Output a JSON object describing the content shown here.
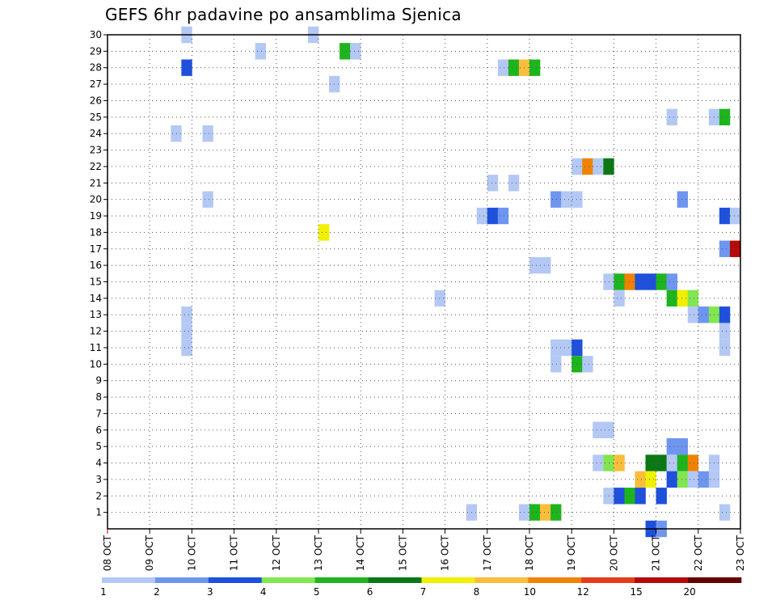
{
  "chart_data": {
    "type": "heatmap",
    "title": "GEFS 6hr padavine po ansamblima Sjenica",
    "xlabel": "",
    "ylabel": "",
    "x_tick_labels": [
      "08 OCT",
      "09 OCT",
      "10 OCT",
      "11 OCT",
      "12 OCT",
      "13 OCT",
      "14 OCT",
      "15 OCT",
      "16 OCT",
      "17 OCT",
      "18 OCT",
      "19 OCT",
      "20 OCT",
      "21 OCT",
      "22 OCT",
      "23 OCT"
    ],
    "y_tick_labels": [
      "1",
      "2",
      "3",
      "4",
      "5",
      "6",
      "7",
      "8",
      "9",
      "10",
      "11",
      "12",
      "13",
      "14",
      "15",
      "16",
      "17",
      "18",
      "19",
      "20",
      "21",
      "22",
      "23",
      "24",
      "25",
      "26",
      "27",
      "28",
      "29",
      "30"
    ],
    "x_range_days": [
      0,
      15
    ],
    "y_range": [
      0,
      30
    ],
    "grid": true,
    "legend": {
      "placement": "bottom",
      "labels": [
        "1",
        "2",
        "3",
        "4",
        "5",
        "6",
        "7",
        "8",
        "10",
        "12",
        "15",
        "20"
      ],
      "colors": [
        "#b4c8f5",
        "#6e96f0",
        "#1e50dc",
        "#82e650",
        "#1eb41e",
        "#0a7814",
        "#f0f000",
        "#fabe3c",
        "#f08200",
        "#e63c1e",
        "#b40a0a",
        "#640000"
      ]
    },
    "unit": "mm per 6h (colour class)",
    "cells": [
      {
        "member": 30,
        "day": 9.75,
        "class": 1
      },
      {
        "member": 30,
        "day": 12.75,
        "class": 1
      },
      {
        "member": 29,
        "day": 11.5,
        "class": 1
      },
      {
        "member": 29,
        "day": 13.5,
        "class": 5
      },
      {
        "member": 29,
        "day": 13.75,
        "class": 1
      },
      {
        "member": 28,
        "day": 9.75,
        "class": 3
      },
      {
        "member": 28,
        "day": 17.25,
        "class": 1
      },
      {
        "member": 28,
        "day": 17.5,
        "class": 5
      },
      {
        "member": 28,
        "day": 17.75,
        "class": 8
      },
      {
        "member": 28,
        "day": 18.0,
        "class": 5
      },
      {
        "member": 27,
        "day": 13.25,
        "class": 1
      },
      {
        "member": 25,
        "day": 21.25,
        "class": 1
      },
      {
        "member": 25,
        "day": 22.25,
        "class": 1
      },
      {
        "member": 25,
        "day": 22.5,
        "class": 5
      },
      {
        "member": 24,
        "day": 9.5,
        "class": 1
      },
      {
        "member": 24,
        "day": 10.25,
        "class": 1
      },
      {
        "member": 22,
        "day": 19.0,
        "class": 1
      },
      {
        "member": 22,
        "day": 19.25,
        "class": 9
      },
      {
        "member": 22,
        "day": 19.5,
        "class": 1
      },
      {
        "member": 22,
        "day": 19.75,
        "class": 6
      },
      {
        "member": 21,
        "day": 17.0,
        "class": 1
      },
      {
        "member": 21,
        "day": 17.5,
        "class": 1
      },
      {
        "member": 20,
        "day": 10.25,
        "class": 1
      },
      {
        "member": 20,
        "day": 18.5,
        "class": 2
      },
      {
        "member": 20,
        "day": 18.75,
        "class": 1
      },
      {
        "member": 20,
        "day": 19.0,
        "class": 1
      },
      {
        "member": 20,
        "day": 21.5,
        "class": 2
      },
      {
        "member": 19,
        "day": 16.75,
        "class": 1
      },
      {
        "member": 19,
        "day": 17.0,
        "class": 3
      },
      {
        "member": 19,
        "day": 17.25,
        "class": 2
      },
      {
        "member": 19,
        "day": 22.5,
        "class": 3
      },
      {
        "member": 19,
        "day": 22.75,
        "class": 1
      },
      {
        "member": 18,
        "day": 13.0,
        "class": 7
      },
      {
        "member": 17,
        "day": 22.5,
        "class": 2
      },
      {
        "member": 17,
        "day": 22.75,
        "class": 11
      },
      {
        "member": 16,
        "day": 18.0,
        "class": 1
      },
      {
        "member": 16,
        "day": 18.25,
        "class": 1
      },
      {
        "member": 15,
        "day": 19.75,
        "class": 1
      },
      {
        "member": 15,
        "day": 20.0,
        "class": 5
      },
      {
        "member": 15,
        "day": 20.25,
        "class": 9
      },
      {
        "member": 15,
        "day": 20.5,
        "class": 3
      },
      {
        "member": 15,
        "day": 20.75,
        "class": 3
      },
      {
        "member": 15,
        "day": 21.0,
        "class": 5
      },
      {
        "member": 15,
        "day": 21.25,
        "class": 2
      },
      {
        "member": 14,
        "day": 15.75,
        "class": 1
      },
      {
        "member": 14,
        "day": 20.0,
        "class": 1
      },
      {
        "member": 14,
        "day": 21.25,
        "class": 5
      },
      {
        "member": 14,
        "day": 21.5,
        "class": 7
      },
      {
        "member": 14,
        "day": 21.75,
        "class": 4
      },
      {
        "member": 13,
        "day": 9.75,
        "class": 1
      },
      {
        "member": 13,
        "day": 21.75,
        "class": 1
      },
      {
        "member": 13,
        "day": 22.0,
        "class": 2
      },
      {
        "member": 13,
        "day": 22.25,
        "class": 4
      },
      {
        "member": 13,
        "day": 22.5,
        "class": 3
      },
      {
        "member": 12,
        "day": 9.75,
        "class": 1
      },
      {
        "member": 12,
        "day": 22.5,
        "class": 1
      },
      {
        "member": 11,
        "day": 9.75,
        "class": 1
      },
      {
        "member": 11,
        "day": 18.5,
        "class": 1
      },
      {
        "member": 11,
        "day": 18.75,
        "class": 1
      },
      {
        "member": 11,
        "day": 19.0,
        "class": 3
      },
      {
        "member": 11,
        "day": 22.5,
        "class": 1
      },
      {
        "member": 10,
        "day": 18.5,
        "class": 1
      },
      {
        "member": 10,
        "day": 19.0,
        "class": 5
      },
      {
        "member": 10,
        "day": 19.25,
        "class": 1
      },
      {
        "member": 6,
        "day": 19.5,
        "class": 1
      },
      {
        "member": 6,
        "day": 19.75,
        "class": 1
      },
      {
        "member": 5,
        "day": 21.25,
        "class": 2
      },
      {
        "member": 5,
        "day": 21.5,
        "class": 2
      },
      {
        "member": 4,
        "day": 19.5,
        "class": 1
      },
      {
        "member": 4,
        "day": 19.75,
        "class": 4
      },
      {
        "member": 4,
        "day": 20.0,
        "class": 8
      },
      {
        "member": 4,
        "day": 20.75,
        "class": 6
      },
      {
        "member": 4,
        "day": 21.0,
        "class": 6
      },
      {
        "member": 4,
        "day": 21.25,
        "class": 1
      },
      {
        "member": 4,
        "day": 21.5,
        "class": 5
      },
      {
        "member": 4,
        "day": 21.75,
        "class": 9
      },
      {
        "member": 4,
        "day": 22.25,
        "class": 1
      },
      {
        "member": 3,
        "day": 20.5,
        "class": 8
      },
      {
        "member": 3,
        "day": 20.75,
        "class": 7
      },
      {
        "member": 3,
        "day": 21.25,
        "class": 3
      },
      {
        "member": 3,
        "day": 21.5,
        "class": 4
      },
      {
        "member": 3,
        "day": 21.75,
        "class": 1
      },
      {
        "member": 3,
        "day": 22.0,
        "class": 2
      },
      {
        "member": 3,
        "day": 22.25,
        "class": 1
      },
      {
        "member": 2,
        "day": 19.75,
        "class": 1
      },
      {
        "member": 2,
        "day": 20.0,
        "class": 3
      },
      {
        "member": 2,
        "day": 20.25,
        "class": 5
      },
      {
        "member": 2,
        "day": 20.5,
        "class": 3
      },
      {
        "member": 2,
        "day": 21.0,
        "class": 3
      },
      {
        "member": 1,
        "day": 16.5,
        "class": 1
      },
      {
        "member": 1,
        "day": 17.75,
        "class": 1
      },
      {
        "member": 1,
        "day": 18.0,
        "class": 5
      },
      {
        "member": 1,
        "day": 18.25,
        "class": 8
      },
      {
        "member": 1,
        "day": 18.5,
        "class": 5
      },
      {
        "member": 1,
        "day": 22.5,
        "class": 1
      },
      {
        "member": 0,
        "day": 20.75,
        "class": 3
      },
      {
        "member": 0,
        "day": 21.0,
        "class": 2
      }
    ]
  }
}
